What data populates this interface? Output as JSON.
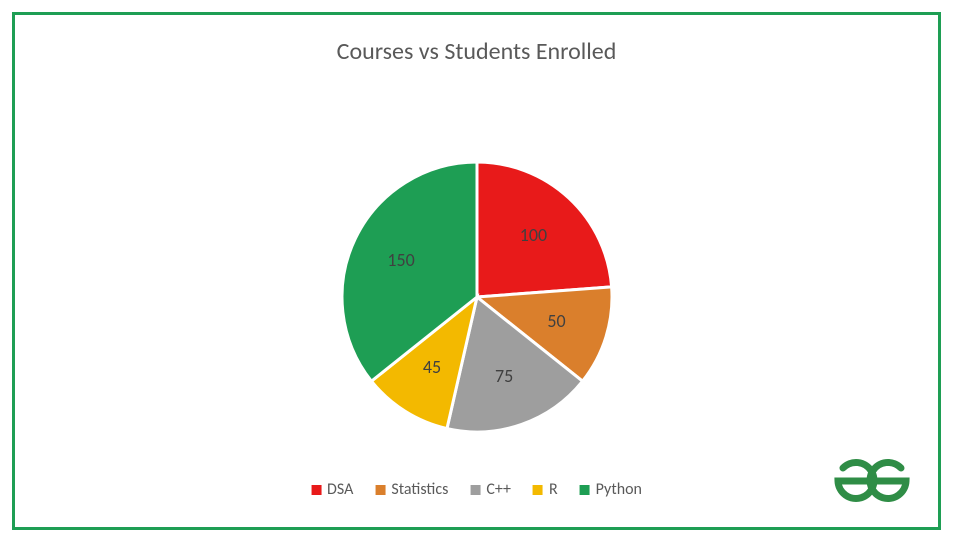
{
  "frame": {
    "border_color": "#1e9e54",
    "background_color": "#ffffff"
  },
  "chart": {
    "type": "pie",
    "title": "Courses vs Students Enrolled",
    "title_fontsize": 24,
    "title_color": "#595959",
    "radius": 135,
    "slice_gap_deg": 2,
    "slice_stroke": "#ffffff",
    "slice_stroke_width": 3,
    "label_fontsize": 18,
    "label_color": "#404040",
    "slices": [
      {
        "name": "DSA",
        "value": 100,
        "color": "#e81a1a",
        "label": "100"
      },
      {
        "name": "Statistics",
        "value": 50,
        "color": "#da7f2c",
        "label": "50"
      },
      {
        "name": "C++",
        "value": 75,
        "color": "#9e9e9e",
        "label": "75"
      },
      {
        "name": "R",
        "value": 45,
        "color": "#f3b900",
        "label": "45"
      },
      {
        "name": "Python",
        "value": 150,
        "color": "#1e9e54",
        "label": "150"
      }
    ],
    "legend": {
      "position": "bottom",
      "items": [
        {
          "name": "DSA",
          "color": "#e81a1a"
        },
        {
          "name": "Statistics",
          "color": "#da7f2c"
        },
        {
          "name": "C++",
          "color": "#9e9e9e"
        },
        {
          "name": "R",
          "color": "#f3b900"
        },
        {
          "name": "Python",
          "color": "#1e9e54"
        }
      ]
    }
  },
  "logo": {
    "name": "geeksforgeeks-logo",
    "color": "#2f8d46"
  }
}
